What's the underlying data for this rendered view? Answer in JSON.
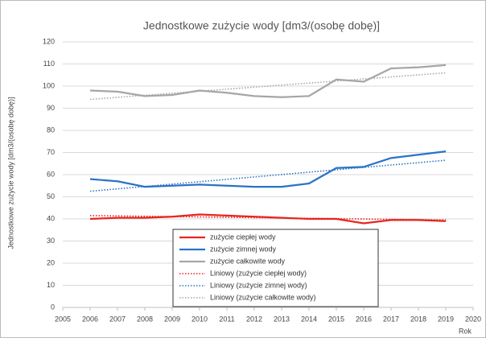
{
  "chart_data": {
    "type": "line",
    "title": "Jednostkowe zużycie wody [dm3/(osobę dobę)]",
    "x_label": "Rok",
    "y_label": "Jednostkowe zużycie wody [dm3/(osobę dobę)]",
    "xlim": [
      2005,
      2020
    ],
    "xticks": [
      2005,
      2006,
      2007,
      2008,
      2009,
      2010,
      2011,
      2012,
      2013,
      2014,
      2015,
      2016,
      2017,
      2018,
      2019,
      2020
    ],
    "ylim": [
      0,
      120
    ],
    "yticks": [
      0,
      10,
      20,
      30,
      40,
      50,
      60,
      70,
      80,
      90,
      100,
      110,
      120
    ],
    "grid": true,
    "series": [
      {
        "name": "zużycie ciepłej wody",
        "color": "#e8251f",
        "style": "solid",
        "x": [
          2006,
          2007,
          2008,
          2009,
          2010,
          2011,
          2012,
          2013,
          2014,
          2015,
          2016,
          2017,
          2018,
          2019
        ],
        "values": [
          40,
          40.5,
          40.5,
          41,
          42,
          41.5,
          41,
          40.5,
          40,
          40,
          38,
          39.5,
          39.5,
          39
        ]
      },
      {
        "name": "zużycie zimnej wody",
        "color": "#2a73c6",
        "style": "solid",
        "x": [
          2006,
          2007,
          2008,
          2009,
          2010,
          2011,
          2012,
          2013,
          2014,
          2015,
          2016,
          2017,
          2018,
          2019
        ],
        "values": [
          58,
          57,
          54.5,
          55,
          55.5,
          55,
          54.5,
          54.5,
          56,
          63,
          63.5,
          67.5,
          69,
          70.5
        ]
      },
      {
        "name": "zużycie całkowite wody",
        "color": "#a6a6a6",
        "style": "solid",
        "x": [
          2006,
          2007,
          2008,
          2009,
          2010,
          2011,
          2012,
          2013,
          2014,
          2015,
          2016,
          2017,
          2018,
          2019
        ],
        "values": [
          98,
          97.5,
          95.5,
          96,
          98,
          97,
          95.5,
          95,
          95.5,
          103,
          102,
          108,
          108.5,
          109.5
        ]
      },
      {
        "name": "Liniowy (zużycie ciepłej wody)",
        "color": "#e8251f",
        "style": "dotted",
        "x": [
          2006,
          2019
        ],
        "values": [
          41.5,
          39.5
        ]
      },
      {
        "name": "Liniowy (zużycie zimnej wody)",
        "color": "#2a73c6",
        "style": "dotted",
        "x": [
          2006,
          2019
        ],
        "values": [
          52.5,
          66.5
        ]
      },
      {
        "name": "Liniowy (zużycie całkowite wody)",
        "color": "#a6a6a6",
        "style": "dotted",
        "x": [
          2006,
          2019
        ],
        "values": [
          94,
          106
        ]
      }
    ]
  }
}
